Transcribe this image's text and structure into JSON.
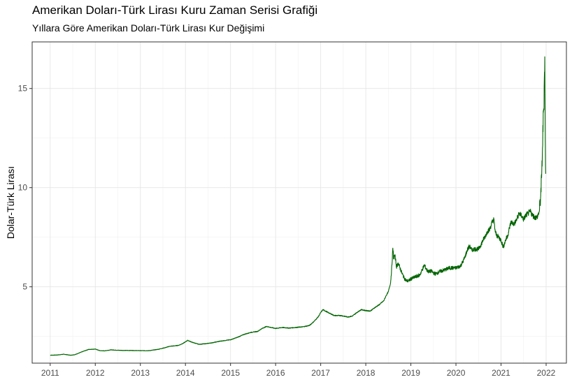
{
  "chart_data": {
    "type": "line",
    "title": "Amerikan Doları-Türk Lirası Kuru Zaman Serisi Grafiği",
    "subtitle": "Yıllara Göre Amerikan Doları-Türk Lirası Kur Değişimi",
    "xlabel": "",
    "ylabel": "Dolar-Türk Lirası",
    "x_tick_labels": [
      "2011",
      "2012",
      "2013",
      "2014",
      "2015",
      "2016",
      "2017",
      "2018",
      "2019",
      "2020",
      "2021",
      "2022"
    ],
    "y_tick_values": [
      5,
      10,
      15
    ],
    "y_tick_labels": [
      "5",
      "10",
      "15"
    ],
    "xlim": [
      2010.6,
      2022.45
    ],
    "ylim": [
      1.15,
      17.35
    ],
    "grid": true,
    "legend": "none",
    "series": [
      {
        "color": "#006400",
        "x": [
          2011.0,
          2011.15,
          2011.3,
          2011.45,
          2011.55,
          2011.65,
          2011.75,
          2011.85,
          2012.0,
          2012.1,
          2012.2,
          2012.35,
          2012.5,
          2012.65,
          2012.8,
          2013.0,
          2013.2,
          2013.4,
          2013.55,
          2013.65,
          2013.75,
          2013.85,
          2013.95,
          2014.05,
          2014.15,
          2014.3,
          2014.45,
          2014.6,
          2014.75,
          2014.9,
          2015.0,
          2015.15,
          2015.3,
          2015.45,
          2015.6,
          2015.7,
          2015.8,
          2015.9,
          2016.0,
          2016.15,
          2016.3,
          2016.45,
          2016.6,
          2016.75,
          2016.85,
          2016.95,
          2017.0,
          2017.05,
          2017.15,
          2017.3,
          2017.45,
          2017.6,
          2017.7,
          2017.8,
          2017.9,
          2018.0,
          2018.1,
          2018.2,
          2018.3,
          2018.4,
          2018.45,
          2018.5,
          2018.55,
          2018.58,
          2018.6,
          2018.62,
          2018.64,
          2018.66,
          2018.68,
          2018.7,
          2018.72,
          2018.75,
          2018.8,
          2018.85,
          2018.9,
          2018.95,
          2019.0,
          2019.1,
          2019.2,
          2019.25,
          2019.3,
          2019.35,
          2019.4,
          2019.45,
          2019.5,
          2019.55,
          2019.65,
          2019.75,
          2019.85,
          2019.95,
          2020.0,
          2020.1,
          2020.15,
          2020.2,
          2020.25,
          2020.3,
          2020.35,
          2020.4,
          2020.5,
          2020.55,
          2020.6,
          2020.65,
          2020.7,
          2020.75,
          2020.8,
          2020.84,
          2020.87,
          2020.9,
          2020.95,
          2021.0,
          2021.05,
          2021.1,
          2021.15,
          2021.2,
          2021.23,
          2021.27,
          2021.3,
          2021.35,
          2021.4,
          2021.45,
          2021.5,
          2021.55,
          2021.6,
          2021.65,
          2021.7,
          2021.75,
          2021.8,
          2021.85,
          2021.88,
          2021.9,
          2021.92,
          2021.94,
          2021.95,
          2021.96,
          2021.97,
          2021.98,
          2021.99
        ],
        "values": [
          1.55,
          1.56,
          1.6,
          1.55,
          1.58,
          1.67,
          1.76,
          1.84,
          1.86,
          1.78,
          1.77,
          1.82,
          1.8,
          1.79,
          1.79,
          1.78,
          1.78,
          1.85,
          1.93,
          2.0,
          2.02,
          2.05,
          2.15,
          2.3,
          2.2,
          2.1,
          2.13,
          2.18,
          2.25,
          2.3,
          2.33,
          2.45,
          2.6,
          2.7,
          2.75,
          2.9,
          3.0,
          2.95,
          2.9,
          2.95,
          2.92,
          2.95,
          2.98,
          3.05,
          3.25,
          3.5,
          3.7,
          3.85,
          3.72,
          3.55,
          3.55,
          3.48,
          3.52,
          3.7,
          3.85,
          3.8,
          3.78,
          3.95,
          4.1,
          4.3,
          4.55,
          4.75,
          5.2,
          6.1,
          6.95,
          6.4,
          6.6,
          6.4,
          6.0,
          6.1,
          6.2,
          6.0,
          5.7,
          5.45,
          5.3,
          5.3,
          5.4,
          5.5,
          5.6,
          5.85,
          6.1,
          5.85,
          5.75,
          5.8,
          5.7,
          5.65,
          5.78,
          5.85,
          5.95,
          5.95,
          5.95,
          6.05,
          6.25,
          6.5,
          6.85,
          7.05,
          6.85,
          6.9,
          6.9,
          7.1,
          7.35,
          7.55,
          7.8,
          7.9,
          8.25,
          8.4,
          7.8,
          7.6,
          7.5,
          7.35,
          7.0,
          7.35,
          7.6,
          8.1,
          8.3,
          8.15,
          8.2,
          8.4,
          8.7,
          8.6,
          8.4,
          8.6,
          8.7,
          8.8,
          8.6,
          8.5,
          8.5,
          8.8,
          9.6,
          10.5,
          12.0,
          13.8,
          14.0,
          15.5,
          16.6,
          12.5,
          10.7
        ]
      }
    ]
  }
}
